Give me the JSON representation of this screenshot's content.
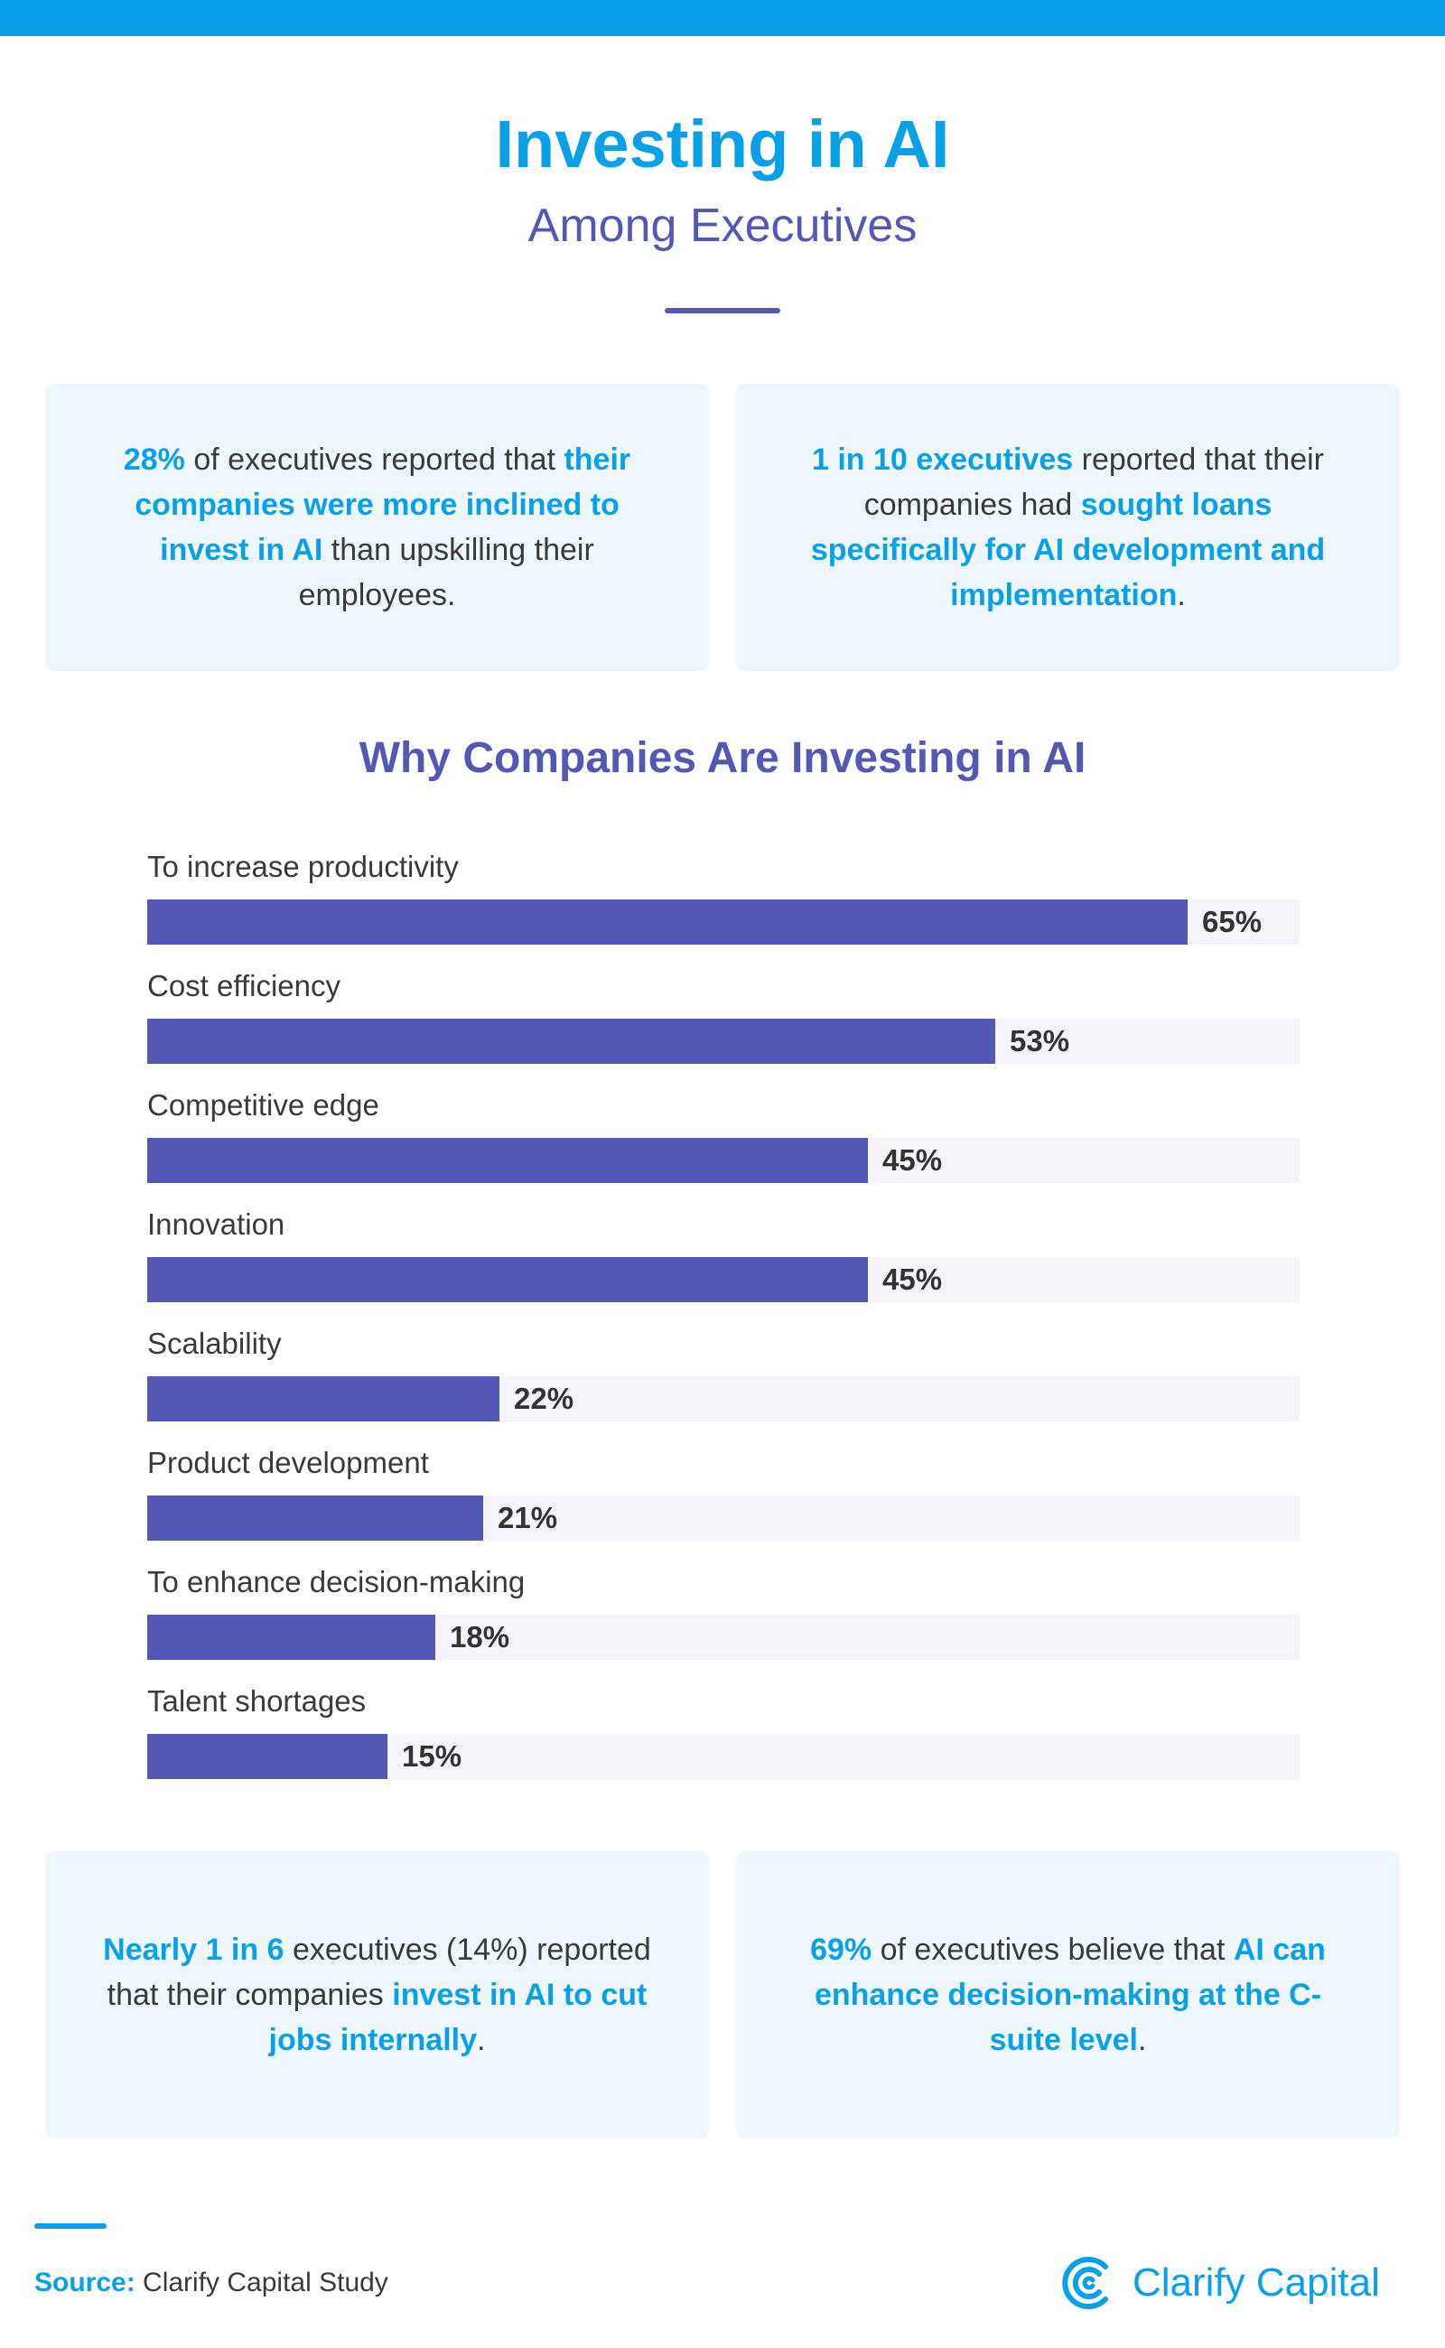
{
  "header": {
    "title_bold": "Investing",
    "title_rest": " in AI",
    "subtitle": "Among Executives"
  },
  "cards": {
    "top_left": [
      {
        "text": "28%",
        "hl": true
      },
      {
        "text": " of executives reported that ",
        "hl": false
      },
      {
        "text": "their companies were more inclined to invest in AI",
        "hl": true
      },
      {
        "text": " than upskilling their employees.",
        "hl": false
      }
    ],
    "top_right": [
      {
        "text": "1 in 10 executives",
        "hl": true
      },
      {
        "text": " reported that their companies had ",
        "hl": false
      },
      {
        "text": "sought loans specifically for AI development and implementation",
        "hl": true
      },
      {
        "text": ".",
        "hl": false
      }
    ],
    "bottom_left": [
      {
        "text": "Nearly 1 in 6",
        "hl": true
      },
      {
        "text": " executives (14%) reported that their companies ",
        "hl": false
      },
      {
        "text": "invest in AI to cut jobs internally",
        "hl": true
      },
      {
        "text": ".",
        "hl": false
      }
    ],
    "bottom_right": [
      {
        "text": "69%",
        "hl": true
      },
      {
        "text": " of executives believe that ",
        "hl": false
      },
      {
        "text": "AI can enhance decision-making at the C-suite level",
        "hl": true
      },
      {
        "text": ".",
        "hl": false
      }
    ]
  },
  "chart_data": {
    "type": "bar",
    "orientation": "horizontal",
    "title": "Why Companies Are Investing in AI",
    "categories": [
      "To increase productivity",
      "Cost efficiency",
      "Competitive edge",
      "Innovation",
      "Scalability",
      "Product development",
      "To enhance decision-making",
      "Talent shortages"
    ],
    "values": [
      65,
      53,
      45,
      45,
      22,
      21,
      18,
      15
    ],
    "value_labels": [
      "65%",
      "53%",
      "45%",
      "45%",
      "22%",
      "21%",
      "18%",
      "15%"
    ],
    "xlim": [
      0,
      72
    ],
    "unit": "%",
    "xlabel": "",
    "ylabel": "",
    "grid": false,
    "legend": "none"
  },
  "footer": {
    "source_label": "Source:",
    "source_text": " Clarify Capital Study",
    "brand": "Clarify Capital"
  },
  "colors": {
    "accent_blue": "#0aa0e8",
    "accent_purple": "#5557b5",
    "card_bg": "#eef7fc",
    "track_bg": "#f4f4fa"
  }
}
